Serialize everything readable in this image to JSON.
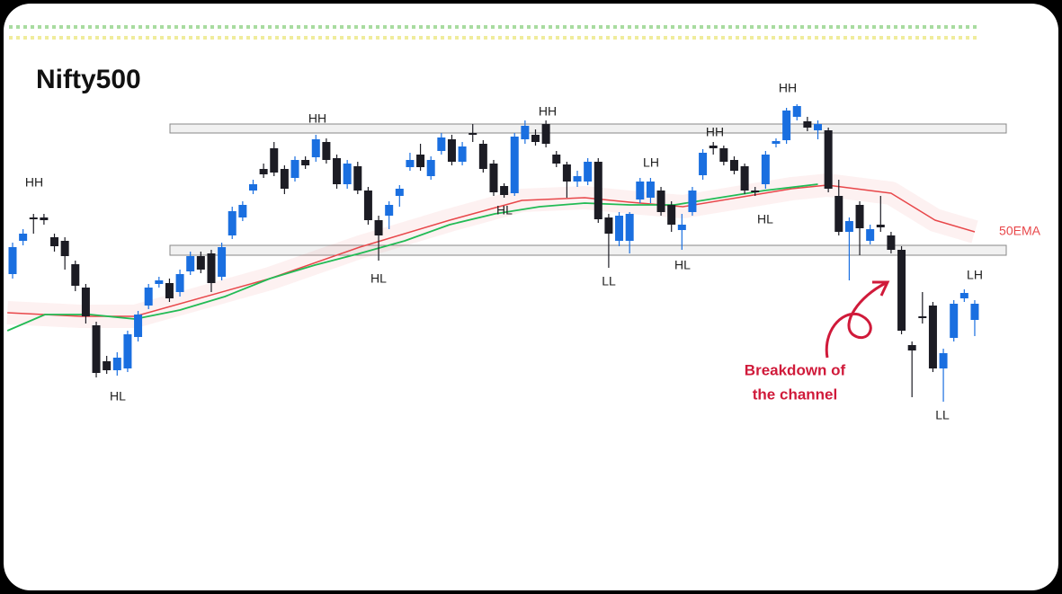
{
  "chart_data": {
    "type": "candlestick",
    "title": "Nifty500",
    "up_color": "#1a6fe0",
    "down_color": "#1c1c24",
    "open": [
      195,
      232,
      258,
      258,
      236,
      232,
      206,
      180,
      138,
      98,
      88,
      90,
      125,
      160,
      184,
      185,
      175,
      198,
      215,
      218,
      192,
      238,
      258,
      288,
      312,
      335,
      312,
      302,
      322,
      325,
      342,
      324,
      295,
      315,
      288,
      255,
      260,
      282,
      314,
      328,
      304,
      332,
      345,
      320,
      352,
      340,
      318,
      293,
      285,
      345,
      350,
      362,
      328,
      317,
      298,
      298,
      320,
      258,
      232,
      232,
      278,
      280,
      288,
      272,
      244,
      264,
      305,
      338,
      335,
      322,
      315,
      288,
      295,
      340,
      344,
      370,
      365,
      355,
      355,
      282,
      242,
      272,
      232,
      250,
      238,
      222,
      116,
      148,
      160,
      90,
      124,
      168,
      144
    ],
    "high": [
      230,
      245,
      262,
      262,
      240,
      236,
      210,
      184,
      142,
      104,
      108,
      132,
      154,
      184,
      192,
      190,
      200,
      220,
      220,
      222,
      230,
      270,
      276,
      300,
      318,
      342,
      316,
      326,
      326,
      350,
      346,
      328,
      322,
      320,
      292,
      260,
      276,
      294,
      330,
      340,
      326,
      352,
      350,
      342,
      362,
      344,
      322,
      296,
      352,
      366,
      356,
      366,
      332,
      320,
      310,
      324,
      324,
      262,
      264,
      264,
      302,
      302,
      292,
      276,
      262,
      292,
      334,
      342,
      338,
      326,
      318,
      292,
      332,
      346,
      380,
      384,
      370,
      366,
      358,
      300,
      258,
      276,
      250,
      282,
      242,
      226,
      120,
      175,
      164,
      112,
      166,
      178,
      166
    ],
    "low": [
      190,
      227,
      240,
      250,
      220,
      200,
      176,
      140,
      80,
      84,
      82,
      86,
      120,
      156,
      180,
      164,
      170,
      194,
      196,
      175,
      188,
      234,
      254,
      284,
      302,
      304,
      284,
      298,
      312,
      320,
      318,
      290,
      290,
      284,
      250,
      210,
      245,
      270,
      310,
      310,
      300,
      328,
      316,
      316,
      342,
      308,
      282,
      280,
      282,
      340,
      338,
      336,
      314,
      280,
      292,
      294,
      252,
      202,
      226,
      218,
      274,
      274,
      260,
      242,
      222,
      260,
      300,
      328,
      316,
      306,
      284,
      282,
      290,
      336,
      340,
      366,
      354,
      345,
      286,
      238,
      188,
      216,
      228,
      242,
      218,
      128,
      58,
      140,
      86,
      53,
      120,
      164,
      126
    ],
    "close": [
      225,
      240,
      256,
      255,
      226,
      215,
      182,
      148,
      85,
      88,
      102,
      128,
      150,
      180,
      188,
      168,
      195,
      215,
      200,
      185,
      225,
      265,
      272,
      295,
      306,
      308,
      290,
      322,
      316,
      345,
      322,
      295,
      318,
      288,
      255,
      238,
      272,
      290,
      322,
      314,
      322,
      347,
      320,
      337,
      350,
      312,
      286,
      283,
      348,
      360,
      342,
      340,
      318,
      298,
      304,
      320,
      256,
      240,
      260,
      262,
      298,
      298,
      264,
      250,
      250,
      288,
      330,
      335,
      320,
      310,
      288,
      286,
      328,
      343,
      377,
      382,
      358,
      362,
      290,
      242,
      254,
      246,
      245,
      247,
      222,
      132,
      110,
      146,
      90,
      107,
      162,
      174,
      162
    ],
    "ema_green": {
      "color": "#22bb55",
      "x": [
        -0.5,
        3.1,
        7.4,
        11.7,
        16.0,
        20.3,
        24.6,
        28.9,
        33.2,
        37.5,
        41.8,
        46.1,
        50.4,
        54.7,
        59.0,
        63.3,
        67.6,
        71.9,
        77.0
      ],
      "values": [
        132,
        150,
        150,
        145,
        155,
        170,
        190,
        205,
        218,
        232,
        250,
        262,
        270,
        274,
        272,
        272,
        280,
        288,
        295
      ]
    },
    "ema_red": {
      "name": "50EMA",
      "color": "#e8474a",
      "x": [
        -0.5,
        6.5,
        11.7,
        24.6,
        33.2,
        41.8,
        48.7,
        54.7,
        59.0,
        64.1,
        69.3,
        74.5,
        77.9,
        84.0,
        88.2,
        92.0
      ],
      "values": [
        152,
        148,
        148,
        190,
        225,
        255,
        277,
        280,
        275,
        270,
        280,
        290,
        294,
        285,
        255,
        242
      ]
    },
    "annotations": [
      "HH",
      "HH",
      "HH",
      "HH",
      "HH",
      "LH",
      "LH",
      "HL",
      "HL",
      "HL",
      "HL",
      "HL",
      "LL",
      "LL"
    ],
    "callout": [
      "Breakdown of",
      "the channel"
    ]
  }
}
